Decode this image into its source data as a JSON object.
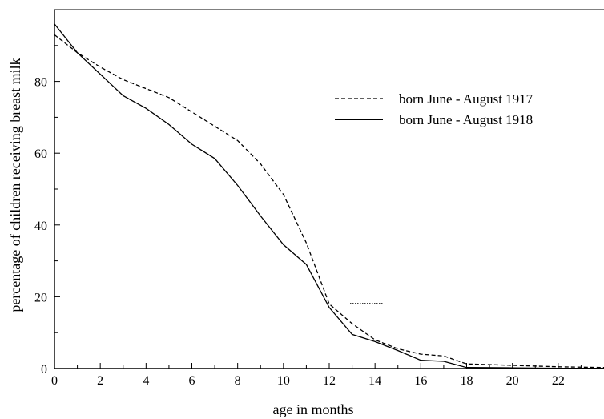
{
  "chart_data": {
    "type": "line",
    "xlabel": "age in months",
    "ylabel": "percentage of children receiving breast milk",
    "xlim": [
      0,
      24
    ],
    "ylim": [
      0,
      100
    ],
    "x_ticks": [
      "0",
      "2",
      "4",
      "6",
      "8",
      "10",
      "12",
      "14",
      "16",
      "18",
      "20",
      "22"
    ],
    "y_ticks": [
      "0",
      "20",
      "40",
      "60",
      "80"
    ],
    "grid": false,
    "legend_position": "top-right",
    "series": [
      {
        "name": "born June - August 1917",
        "style": "dashed",
        "color": "#000000",
        "points": [
          [
            0,
            93
          ],
          [
            1,
            88
          ],
          [
            2,
            84
          ],
          [
            3,
            80.5
          ],
          [
            4,
            78
          ],
          [
            5,
            75.5
          ],
          [
            6,
            71.5
          ],
          [
            7,
            67.5
          ],
          [
            8,
            63.5
          ],
          [
            9,
            57
          ],
          [
            10,
            48.5
          ],
          [
            11,
            35
          ],
          [
            12,
            18
          ],
          [
            13,
            12.5
          ],
          [
            14,
            8
          ],
          [
            15,
            5.5
          ],
          [
            16,
            4
          ],
          [
            17,
            3.5
          ],
          [
            18,
            1.3
          ],
          [
            20,
            0.9
          ],
          [
            22,
            0.5
          ],
          [
            24,
            0.3
          ]
        ]
      },
      {
        "name": "born June - August 1918",
        "style": "solid",
        "color": "#000000",
        "points": [
          [
            0,
            96
          ],
          [
            1,
            88
          ],
          [
            2,
            82
          ],
          [
            3,
            76
          ],
          [
            4,
            72.5
          ],
          [
            5,
            68
          ],
          [
            6,
            62.5
          ],
          [
            7,
            58.5
          ],
          [
            8,
            51
          ],
          [
            9,
            42.5
          ],
          [
            10,
            34.5
          ],
          [
            11,
            29
          ],
          [
            12,
            17
          ],
          [
            13,
            9.5
          ],
          [
            14,
            7.5
          ],
          [
            15,
            5
          ],
          [
            16,
            2.3
          ],
          [
            17,
            2
          ],
          [
            18,
            0.3
          ],
          [
            20,
            0.2
          ],
          [
            22,
            0.1
          ],
          [
            24,
            0.1
          ]
        ]
      }
    ]
  }
}
